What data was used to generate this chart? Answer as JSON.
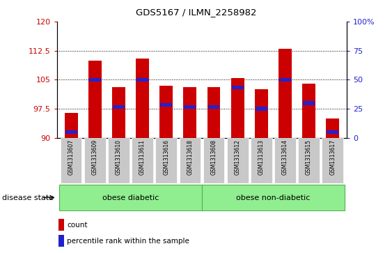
{
  "title": "GDS5167 / ILMN_2258982",
  "samples": [
    "GSM1313607",
    "GSM1313609",
    "GSM1313610",
    "GSM1313611",
    "GSM1313616",
    "GSM1313618",
    "GSM1313608",
    "GSM1313612",
    "GSM1313613",
    "GSM1313614",
    "GSM1313615",
    "GSM1313617"
  ],
  "bar_values": [
    96.5,
    110.0,
    103.0,
    110.5,
    103.5,
    103.0,
    103.0,
    105.5,
    102.5,
    113.0,
    104.0,
    95.0
  ],
  "percentile_values": [
    91.5,
    105.0,
    98.0,
    105.0,
    98.5,
    98.0,
    98.0,
    103.0,
    97.5,
    105.0,
    99.0,
    91.5
  ],
  "bar_baseline": 90,
  "ylim": [
    90,
    120
  ],
  "left_yticks": [
    90,
    97.5,
    105,
    112.5,
    120
  ],
  "left_yticklabels": [
    "90",
    "97.5",
    "105",
    "112.5",
    "120"
  ],
  "right_yticks_pct": [
    0,
    25,
    50,
    75,
    100
  ],
  "right_yticklabels": [
    "0",
    "25",
    "50",
    "75",
    "100%"
  ],
  "bar_color": "#cc0000",
  "marker_color": "#2222cc",
  "group1_label": "obese diabetic",
  "group2_label": "obese non-diabetic",
  "group1_count": 6,
  "group2_count": 6,
  "disease_state_label": "disease state",
  "legend_count_label": "count",
  "legend_percentile_label": "percentile rank within the sample",
  "group_bg_color": "#90ee90",
  "group_edge_color": "#50b050",
  "tick_bg_color": "#c8c8c8",
  "plot_bg_color": "#ffffff",
  "bar_width": 0.55,
  "grid_color": "#000000",
  "grid_linestyle": ":",
  "grid_linewidth": 0.7
}
